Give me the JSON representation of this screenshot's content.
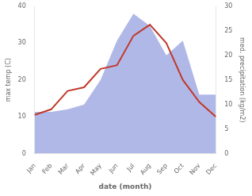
{
  "chart_data": {
    "type": "line",
    "categories": [
      "Jan",
      "Feb",
      "Mar",
      "Apr",
      "May",
      "Jun",
      "Jul",
      "Aug",
      "Sep",
      "Oct",
      "Nov",
      "Dec"
    ],
    "series": [
      {
        "type": "area",
        "color": "#b0b8e8",
        "axis": "y2",
        "values": [
          8.5,
          8.5,
          9.0,
          10.0,
          15.0,
          23.0,
          28.5,
          26.0,
          20.0,
          23.0,
          12.0,
          12.0
        ]
      },
      {
        "type": "line",
        "color": "#c0392b",
        "values": [
          10.5,
          12.0,
          17.0,
          18.0,
          23.0,
          24.0,
          32.0,
          35.0,
          30.0,
          20.0,
          14.0,
          10.0
        ]
      }
    ],
    "xlabel": "date (month)",
    "ylabel": "max temp (C)",
    "y2label": "med. precipitation (kg/m2)",
    "ylim": [
      0,
      40
    ],
    "yticks": [
      0,
      10,
      20,
      30,
      40
    ],
    "y2lim": [
      0,
      30
    ],
    "y2ticks": [
      0,
      5,
      10,
      15,
      20,
      25,
      30
    ],
    "grid": false
  }
}
